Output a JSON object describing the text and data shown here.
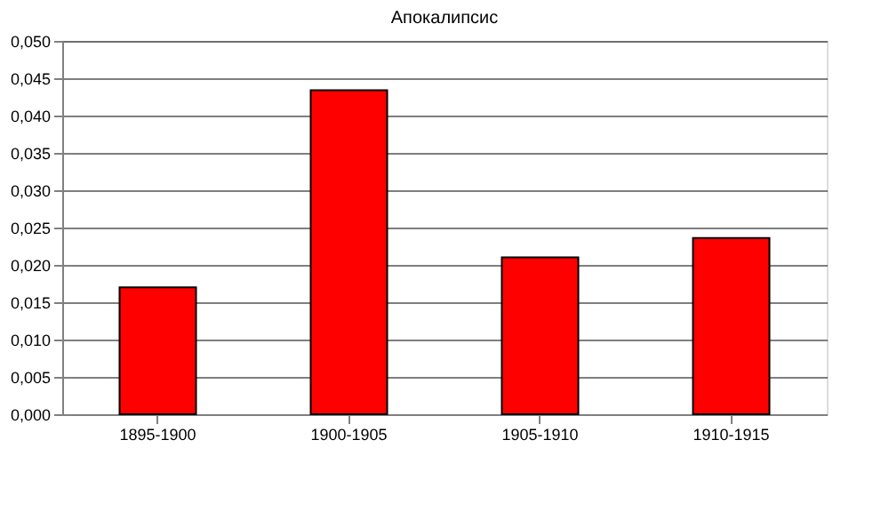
{
  "chart_data": {
    "type": "bar",
    "title": "Апокалипсис",
    "categories": [
      "1895-1900",
      "1900-1905",
      "1905-1910",
      "1910-1915"
    ],
    "values": [
      0.017,
      0.0434,
      0.021,
      0.0236
    ],
    "color": "#ff0000",
    "ylim": [
      0,
      0.05
    ],
    "yticks": [
      {
        "value": 0,
        "label": "0,000"
      },
      {
        "value": 0.005,
        "label": "0,005"
      },
      {
        "value": 0.01,
        "label": "0,010"
      },
      {
        "value": 0.015,
        "label": "0,015"
      },
      {
        "value": 0.02,
        "label": "0,020"
      },
      {
        "value": 0.025,
        "label": "0,025"
      },
      {
        "value": 0.03,
        "label": "0,030"
      },
      {
        "value": 0.035,
        "label": "0,035"
      },
      {
        "value": 0.04,
        "label": "0,040"
      },
      {
        "value": 0.045,
        "label": "0,045"
      },
      {
        "value": 0.05,
        "label": "0,050"
      }
    ],
    "grid": "y",
    "legend": false
  }
}
